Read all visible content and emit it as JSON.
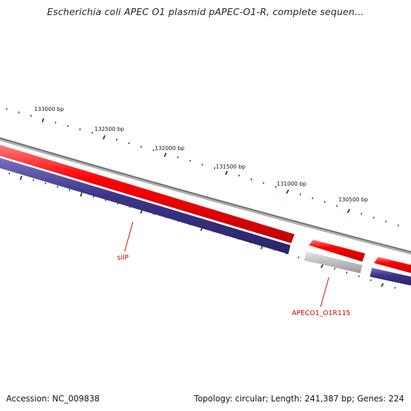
{
  "title": "Escherichia coli APEC O1 plasmid pAPEC-O1-R, complete sequen...",
  "ruler": {
    "labels": [
      "133000 bp",
      "132500 bp",
      "132000 bp",
      "131500 bp",
      "131000 bp",
      "130500 bp"
    ],
    "tick_color": "#006400"
  },
  "tracks": {
    "backbone_color": "#7f7f7f",
    "forward_color": "#ff0000",
    "reverse_color": "#3c3486",
    "other_color": "#bfbfbf"
  },
  "genes": [
    {
      "label": "silP",
      "color": "#cc0000"
    },
    {
      "label": "APECO1_O1R115",
      "color": "#cc0000"
    }
  ],
  "footer": {
    "accession": "Accession: NC_009838",
    "summary": "Topology: circular; Length: 241,387 bp; Genes: 224"
  }
}
